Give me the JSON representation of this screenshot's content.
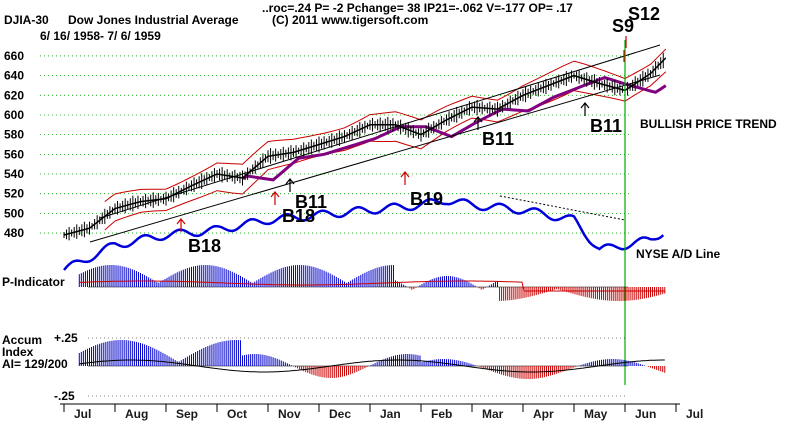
{
  "header": {
    "ticker": "DJIA-30",
    "name": "Dow Jones Industrial Average",
    "date_range": "6/ 16/ 1958- 7/ 6/ 1959",
    "stats": "..roc=.24  P= -2  Pchange=  38  IP21=-.062  V=-177  OP= .17",
    "copyright": "(C) 2011 www.tigersoft.com"
  },
  "labels": {
    "trend": "BULLISH PRICE TREND",
    "ad_line": "NYSE A/D Line",
    "p_indicator": "P-Indicator",
    "accum_line1": "Accum",
    "accum_line2": "Index",
    "accum_line3": "AI= 129/200",
    "accum_top": "+.25",
    "accum_bottom": "-.25"
  },
  "signals": [
    {
      "label": "S9",
      "kind": "sell",
      "month_index": 11.55
    },
    {
      "label": "S12",
      "kind": "sell",
      "month_index": 11.55
    },
    {
      "label": "B11",
      "kind": "buy",
      "month_index": 10.15
    },
    {
      "label": "B11",
      "kind": "buy",
      "month_index": 8.6
    },
    {
      "label": "B11",
      "kind": "buy",
      "month_index": 4.5
    },
    {
      "label": "B18",
      "kind": "buy",
      "month_index": 4.1
    },
    {
      "label": "B18",
      "kind": "buy",
      "month_index": 2.5
    },
    {
      "label": "B19",
      "kind": "buy",
      "month_index": 7.1
    }
  ],
  "colors": {
    "price": "#000000",
    "band": "#cc0000",
    "ma_purple": "#800080",
    "ad_line": "#0000dd",
    "grid": "#00aa00",
    "hist_pos": "#0000cc",
    "hist_neg": "#cc0000",
    "signal_arrow": "#cc0000",
    "vline": "#00aa00"
  },
  "chart_data": {
    "type": "line",
    "title": "DJIA-30 Dow Jones Industrial Average",
    "subtitle": "6/ 16/ 1958- 7/ 6/ 1959",
    "xlabel": "",
    "ylabel": "",
    "categories": [
      "Jul",
      "Aug",
      "Sep",
      "Oct",
      "Nov",
      "Dec",
      "Jan",
      "Feb",
      "Mar",
      "Apr",
      "May",
      "Jun",
      "Jul"
    ],
    "y_ticks": [
      480,
      500,
      520,
      540,
      560,
      580,
      600,
      620,
      640,
      660
    ],
    "ylim": [
      470,
      670
    ],
    "grid": true,
    "series": [
      {
        "name": "DJIA close (approx, by month position)",
        "x": [
          0,
          0.5,
          1,
          1.5,
          2,
          2.5,
          3,
          3.5,
          4,
          4.5,
          5,
          5.5,
          6,
          6.5,
          7,
          7.5,
          8,
          8.5,
          9,
          9.5,
          10,
          10.5,
          11,
          11.5,
          11.8
        ],
        "values": [
          478,
          485,
          505,
          512,
          515,
          528,
          540,
          536,
          558,
          562,
          570,
          578,
          590,
          590,
          580,
          595,
          608,
          606,
          620,
          630,
          640,
          632,
          625,
          642,
          658
        ]
      },
      {
        "name": "NYSE A/D Line (relative)",
        "x": [
          0,
          1,
          2,
          3,
          4,
          5,
          6,
          7,
          7.5,
          8,
          9,
          10,
          10.5,
          11,
          11.5,
          11.8
        ],
        "values": [
          0.2,
          0.45,
          0.55,
          0.6,
          0.7,
          0.75,
          0.8,
          0.85,
          0.9,
          0.85,
          0.8,
          0.7,
          0.4,
          0.45,
          0.5,
          0.6
        ]
      }
    ],
    "annotations": [
      "BULLISH PRICE TREND",
      "NYSE A/D Line"
    ]
  }
}
